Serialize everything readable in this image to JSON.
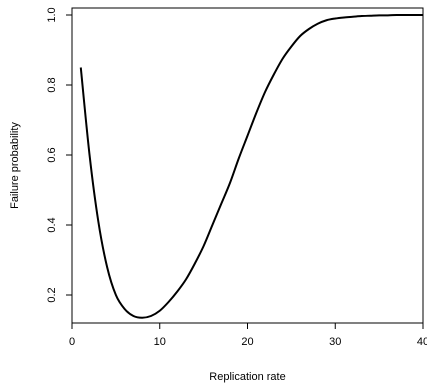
{
  "chart_data": {
    "type": "line",
    "title": "",
    "xlabel": "Replication rate",
    "ylabel": "Failure probability",
    "xlim": [
      0,
      40
    ],
    "ylim": [
      0.12,
      1.02
    ],
    "grid": false,
    "legend": "none",
    "x_ticks": [
      0,
      10,
      20,
      30,
      40
    ],
    "x_tick_labels": [
      "0",
      "10",
      "20",
      "30",
      "40"
    ],
    "y_ticks": [
      0.2,
      0.4,
      0.6,
      0.8,
      1.0
    ],
    "y_tick_labels": [
      "0.2",
      "0.4",
      "0.6",
      "0.8",
      "1.0"
    ],
    "series": [
      {
        "color": "#000000",
        "x": [
          1,
          2,
          3,
          4,
          5,
          6,
          7,
          8,
          9,
          10,
          11,
          12,
          13,
          14,
          15,
          16,
          17,
          18,
          19,
          20,
          21,
          22,
          23,
          24,
          25,
          26,
          27,
          28,
          29,
          30,
          31,
          32,
          33,
          34,
          35,
          36,
          37,
          38,
          39,
          40
        ],
        "y": [
          0.85,
          0.6,
          0.41,
          0.28,
          0.2,
          0.16,
          0.14,
          0.135,
          0.14,
          0.155,
          0.18,
          0.21,
          0.245,
          0.29,
          0.34,
          0.4,
          0.46,
          0.52,
          0.59,
          0.655,
          0.72,
          0.78,
          0.83,
          0.875,
          0.91,
          0.94,
          0.96,
          0.975,
          0.985,
          0.99,
          0.993,
          0.995,
          0.997,
          0.998,
          0.999,
          0.999,
          1.0,
          1.0,
          1.0,
          1.0
        ]
      }
    ]
  }
}
